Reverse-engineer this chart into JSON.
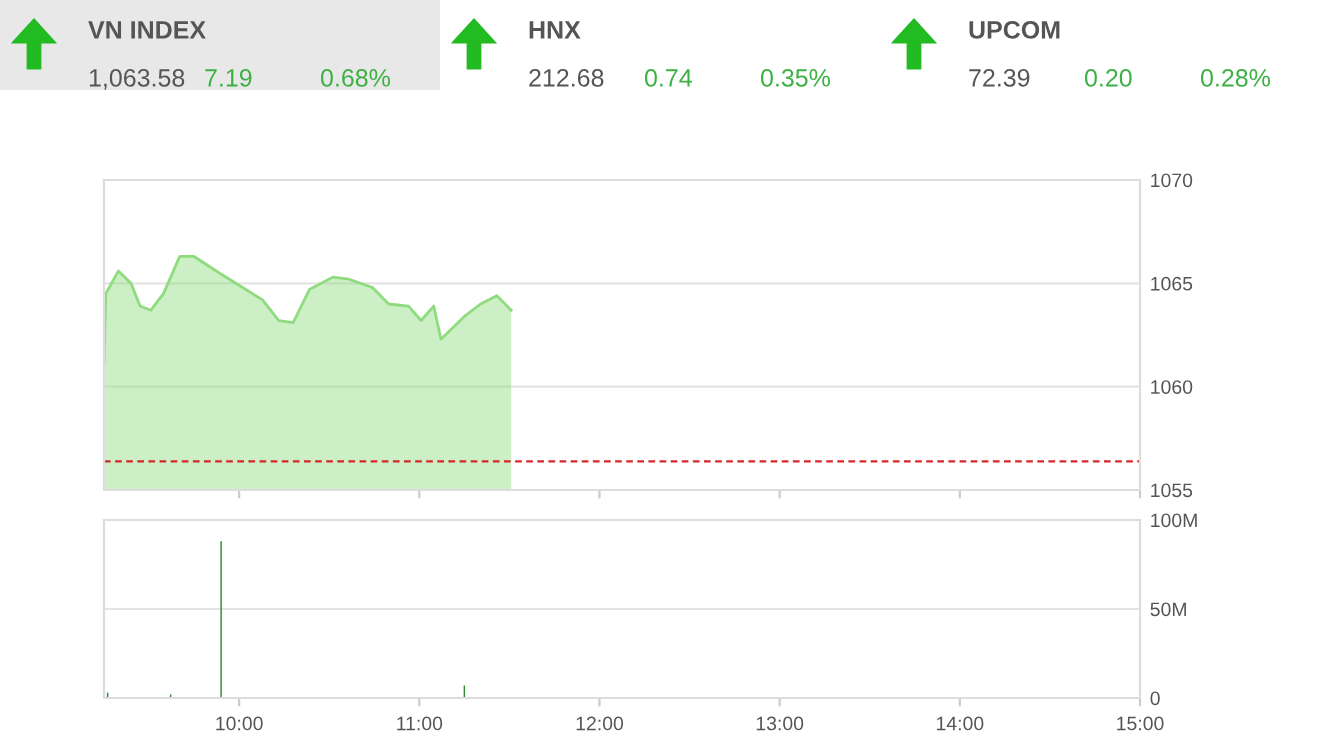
{
  "chart_data": [
    {
      "type": "other",
      "title": "VN INDEX",
      "annotations": [
        "1,063.58",
        "7.19",
        "0.68%"
      ],
      "color": "#e8e8e8"
    },
    {
      "type": "other",
      "title": "HNX",
      "annotations": [
        "212.68",
        "0.74",
        "0.35%"
      ],
      "color": "#ffffff"
    },
    {
      "type": "other",
      "title": "UPCOM",
      "annotations": [
        "72.39",
        "0.20",
        "0.28%"
      ],
      "color": "#ffffff"
    },
    {
      "type": "area",
      "x": [
        9.25,
        9.26,
        9.33,
        9.4,
        9.45,
        9.51,
        9.58,
        9.67,
        9.75,
        9.89,
        10.02,
        10.13,
        10.22,
        10.3,
        10.39,
        10.52,
        10.61,
        10.74,
        10.83,
        10.94,
        11.01,
        11.08,
        11.12,
        11.25,
        11.34,
        11.43,
        11.51
      ],
      "series": [
        {
          "color": "#8fdc7f",
          "values": [
            1061.1,
            1064.5,
            1065.6,
            1065.0,
            1063.9,
            1063.7,
            1064.5,
            1066.3,
            1066.3,
            1065.5,
            1064.8,
            1064.2,
            1063.2,
            1063.1,
            1064.7,
            1065.3,
            1065.2,
            1064.8,
            1064.0,
            1063.9,
            1063.2,
            1063.9,
            1062.3,
            1063.4,
            1064.0,
            1064.4,
            1063.7
          ]
        }
      ],
      "xlim": [
        9.25,
        15
      ],
      "xticks": [
        {
          "value": 10,
          "label": null
        },
        {
          "value": 11,
          "label": null
        },
        {
          "value": 12,
          "label": null
        },
        {
          "value": 13,
          "label": null
        },
        {
          "value": 14,
          "label": null
        },
        {
          "value": 15,
          "label": null
        }
      ],
      "ylim": [
        1055,
        1070
      ],
      "yticks": [
        1055,
        1060,
        1065,
        1070
      ],
      "grid": "y",
      "tick_labels": "y",
      "ref_lines": [
        {
          "axis": "y",
          "value": 1056.39,
          "color": "#d62728",
          "line_style": "dashed"
        }
      ]
    },
    {
      "type": "bar",
      "x": [
        9.27,
        9.62,
        9.9,
        11.25
      ],
      "series": [
        {
          "color": "#2e8b2e",
          "values": [
            3,
            2,
            88,
            7
          ]
        }
      ],
      "xlim": [
        9.25,
        15
      ],
      "xticks": [
        {
          "value": 10,
          "label": "10:00"
        },
        {
          "value": 11,
          "label": "11:00"
        },
        {
          "value": 12,
          "label": "12:00"
        },
        {
          "value": 13,
          "label": "13:00"
        },
        {
          "value": 14,
          "label": "14:00"
        },
        {
          "value": 15,
          "label": "15:00"
        }
      ],
      "ylim": [
        0,
        100
      ],
      "yticks": [
        0,
        {
          "value": 50,
          "label": "50M"
        },
        {
          "value": 100,
          "label": "100M"
        }
      ],
      "grid": "y"
    }
  ]
}
